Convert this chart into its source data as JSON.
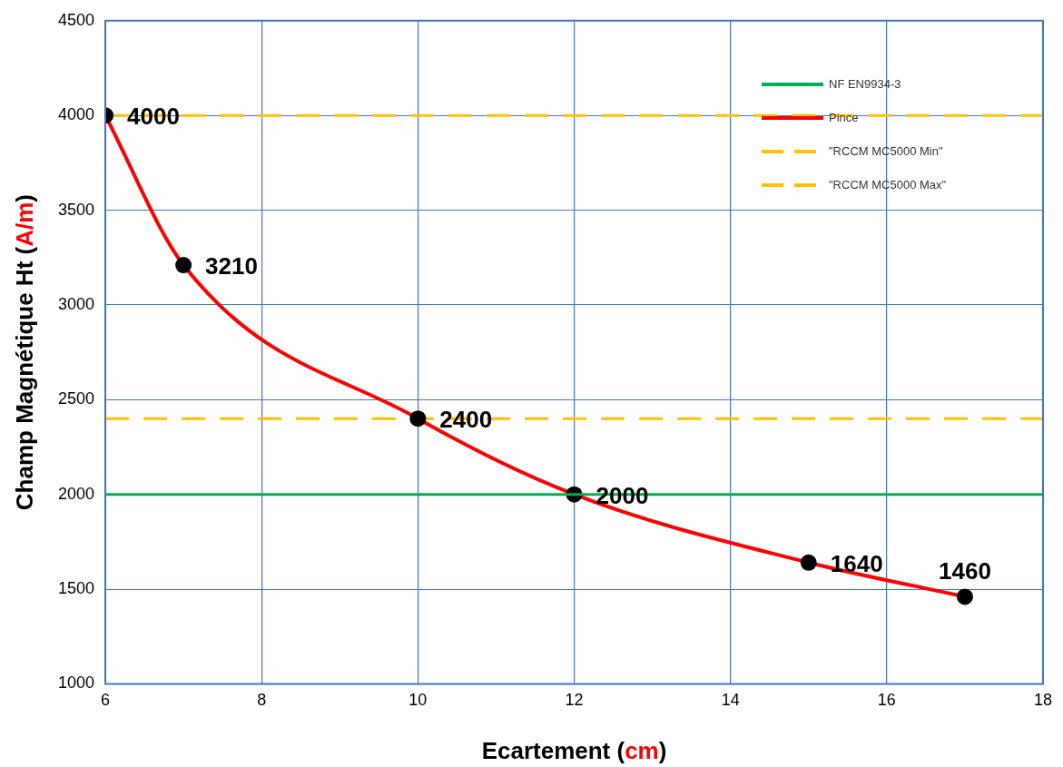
{
  "chart_data": {
    "type": "line",
    "xlabel": "Ecartement (cm)",
    "ylabel": "Champ Magnétique Ht (A/m)",
    "xlim": [
      6,
      18
    ],
    "xticks": [
      6,
      8,
      10,
      12,
      14,
      16,
      18
    ],
    "ylim": [
      1000,
      4500
    ],
    "yticks": [
      1000,
      1500,
      2000,
      2500,
      3000,
      3500,
      4000,
      4500
    ],
    "grid": true,
    "legend": "top right",
    "series": [
      {
        "name": "NF EN9934-3",
        "color": "#00b050",
        "x": [
          6,
          18
        ],
        "values": [
          2000,
          2000
        ],
        "marker": "none",
        "line_style": "solid"
      },
      {
        "name": "Pince",
        "color": "#ff0000",
        "x": [
          6,
          7,
          10,
          12,
          15,
          17
        ],
        "values": [
          4000,
          3210,
          2400,
          2000,
          1640,
          1460
        ],
        "value_labels": [
          "4000",
          "3210",
          "2400",
          "2000",
          "1640",
          "1460"
        ],
        "marker": "circle",
        "line_style": "solid"
      },
      {
        "name": "\"RCCM MC5000 Min\"",
        "color": "#ffc000",
        "x": [
          6,
          18
        ],
        "values": [
          2400,
          2400
        ],
        "marker": "none",
        "line_style": "dashed"
      },
      {
        "name": "\"RCCM MC5000 Max\"",
        "color": "#ffc000",
        "x": [
          6,
          18
        ],
        "values": [
          4000,
          4000
        ],
        "marker": "none",
        "line_style": "dashed"
      }
    ]
  }
}
